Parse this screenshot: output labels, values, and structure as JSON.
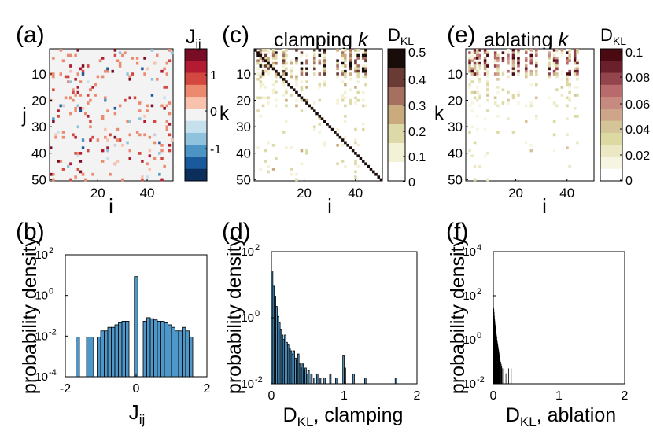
{
  "chart_data": [
    {
      "panel": "(a)",
      "type": "heatmap",
      "title": "",
      "xlabel": "i",
      "ylabel": "j",
      "xlim": [
        1,
        50
      ],
      "ylim": [
        1,
        50
      ],
      "x_ticks": [
        "20",
        "40"
      ],
      "y_ticks": [
        "10",
        "20",
        "30",
        "40",
        "50"
      ],
      "colorbar": {
        "label": "J",
        "label_sub": "ij",
        "range": [
          -1.5,
          1.5
        ],
        "ticks": [
          "1",
          "0",
          "-1"
        ],
        "colors": [
          "#7a0c25",
          "#b21b32",
          "#d2473f",
          "#ec8a70",
          "#f9c2ac",
          "#f3f3f3",
          "#c7e0ed",
          "#8fc2dd",
          "#4b94c4",
          "#1a5a9c",
          "#0b2e5c"
        ]
      },
      "background": "#f3f3f3",
      "cell_colors": [
        "#ec8a70",
        "#d2473f",
        "#b21b32",
        "#7a0c25",
        "#f9c2ac",
        "#8fc2dd",
        "#4b94c4",
        "#1a5a9c",
        "#c7e0ed",
        "#cfcfcf"
      ]
    },
    {
      "panel": "(b)",
      "type": "bar",
      "title": "",
      "xlabel": "J",
      "xlabel_sub": "ij",
      "ylabel": "probability density",
      "x_ticks": [
        "-2",
        "0",
        "2"
      ],
      "y_ticks": [
        "10",
        "10",
        "10",
        "10"
      ],
      "y_tick_exps": [
        "2",
        "0",
        "-2",
        "-4"
      ],
      "xlim": [
        -2,
        2
      ],
      "ylim_log10": [
        -4,
        2
      ],
      "bar_color": "#4e97c8",
      "bin_width": 0.1,
      "x": [
        -1.65,
        -1.35,
        -1.25,
        -1.05,
        -0.95,
        -0.85,
        -0.75,
        -0.65,
        -0.55,
        -0.45,
        -0.35,
        -0.25,
        0.0,
        0.25,
        0.35,
        0.45,
        0.55,
        0.65,
        0.75,
        0.85,
        0.95,
        1.05,
        1.15,
        1.25,
        1.35,
        1.45,
        1.55
      ],
      "values": [
        0.009,
        0.009,
        0.009,
        0.009,
        0.018,
        0.018,
        0.027,
        0.027,
        0.036,
        0.045,
        0.054,
        0.054,
        8.5,
        0.054,
        0.081,
        0.072,
        0.063,
        0.054,
        0.054,
        0.045,
        0.036,
        0.027,
        0.018,
        0.018,
        0.027,
        0.018,
        0.009
      ]
    },
    {
      "panel": "(c)",
      "type": "heatmap",
      "title": "clamping",
      "title_italic": "k",
      "xlabel": "i",
      "ylabel": "k",
      "xlim": [
        1,
        50
      ],
      "ylim": [
        1,
        50
      ],
      "x_ticks": [
        "20",
        "40"
      ],
      "y_ticks": [
        "10",
        "20",
        "30",
        "40",
        "50"
      ],
      "colorbar": {
        "label": "D",
        "label_sub": "KL",
        "range": [
          0,
          0.5
        ],
        "ticks": [
          "0.5",
          "0.4",
          "0.3",
          "0.2",
          "0.1",
          "0"
        ],
        "colors": [
          "#ffffff",
          "#f4f2d6",
          "#ddd9a9",
          "#c9ab7e",
          "#a57062",
          "#6a3b35",
          "#1a0d09"
        ]
      },
      "diagonal_color": "#1a0d09",
      "cell_colors": [
        "#f4f2d6",
        "#ddd9a9",
        "#c9ab7e",
        "#a57062",
        "#6a3b35",
        "#1a0d09",
        "#eee9c4"
      ]
    },
    {
      "panel": "(d)",
      "type": "bar",
      "title": "",
      "xlabel": "D",
      "xlabel_sub": "KL",
      "xlabel_suffix": ", clamping",
      "ylabel": "probability density",
      "x_ticks": [
        "0",
        "1",
        "2"
      ],
      "y_ticks": [
        "10",
        "10",
        "10"
      ],
      "y_tick_exps": [
        "2",
        "0",
        "-2"
      ],
      "xlim": [
        0,
        2
      ],
      "ylim_log10": [
        -2,
        2
      ],
      "bar_color": "#4e97c8",
      "bin_width": 0.02,
      "x": [
        0.01,
        0.03,
        0.05,
        0.07,
        0.09,
        0.11,
        0.13,
        0.15,
        0.17,
        0.19,
        0.21,
        0.23,
        0.25,
        0.27,
        0.29,
        0.31,
        0.33,
        0.35,
        0.37,
        0.39,
        0.41,
        0.43,
        0.45,
        0.47,
        0.49,
        0.51,
        0.55,
        0.59,
        0.63,
        0.67,
        0.73,
        0.81,
        0.89,
        0.99,
        1.01,
        1.13,
        1.29,
        1.71
      ],
      "values": [
        26,
        9,
        4.5,
        2.2,
        1.1,
        0.7,
        0.45,
        0.3,
        0.22,
        0.3,
        0.18,
        0.15,
        0.12,
        0.1,
        0.08,
        0.1,
        0.06,
        0.05,
        0.08,
        0.04,
        0.03,
        0.04,
        0.025,
        0.03,
        0.02,
        0.025,
        0.02,
        0.015,
        0.02,
        0.015,
        0.015,
        0.02,
        0.015,
        0.07,
        0.03,
        0.02,
        0.015,
        0.015
      ]
    },
    {
      "panel": "(e)",
      "type": "heatmap",
      "title": "ablating",
      "title_italic": "k",
      "xlabel": "i",
      "ylabel": "k",
      "xlim": [
        1,
        50
      ],
      "ylim": [
        1,
        50
      ],
      "x_ticks": [
        "20",
        "40"
      ],
      "y_ticks": [
        "10",
        "20",
        "30",
        "40",
        "50"
      ],
      "colorbar": {
        "label": "D",
        "label_sub": "KL",
        "range": [
          0,
          0.1
        ],
        "ticks": [
          "0.1",
          "0.08",
          "0.06",
          "0.04",
          "0.02",
          "0"
        ],
        "colors": [
          "#ffffff",
          "#f6f5e2",
          "#ebe8c3",
          "#dcd9a3",
          "#d4c498",
          "#cfa58a",
          "#c78a80",
          "#b86a6c",
          "#94444d",
          "#6b1f2a",
          "#4a0a12"
        ]
      },
      "cell_colors": [
        "#f6f5e2",
        "#ebe8c3",
        "#dcd9a3",
        "#d4c498",
        "#cfa58a",
        "#c78a80",
        "#b86a6c",
        "#94444d",
        "#6b1f2a",
        "#4a0a12"
      ]
    },
    {
      "panel": "(f)",
      "type": "bar",
      "title": "",
      "xlabel": "D",
      "xlabel_sub": "KL",
      "xlabel_suffix": ", ablation",
      "ylabel": "probability density",
      "x_ticks": [
        "0",
        "1",
        "2"
      ],
      "y_ticks": [
        "10",
        "10",
        "10",
        "10"
      ],
      "y_tick_exps": [
        "4",
        "2",
        "0",
        "-2"
      ],
      "xlim": [
        0,
        2
      ],
      "ylim_log10": [
        -2,
        4
      ],
      "bar_color": "#000000",
      "bin_width": 0.004,
      "x": [
        0.002,
        0.006,
        0.01,
        0.014,
        0.018,
        0.022,
        0.026,
        0.03,
        0.034,
        0.038,
        0.042,
        0.046,
        0.05,
        0.054,
        0.058,
        0.062,
        0.066,
        0.07,
        0.074,
        0.078,
        0.082,
        0.086,
        0.09,
        0.094,
        0.098,
        0.102,
        0.11,
        0.118,
        0.126,
        0.14,
        0.16,
        0.19,
        0.23,
        0.27
      ],
      "values": [
        30,
        25,
        18,
        12,
        9,
        7,
        5,
        4,
        3,
        2.5,
        2,
        1.6,
        1.3,
        1.0,
        0.9,
        0.7,
        0.6,
        0.5,
        0.4,
        0.35,
        0.3,
        0.25,
        0.2,
        0.18,
        0.15,
        0.12,
        0.1,
        0.08,
        0.06,
        0.05,
        0.04,
        0.03,
        0.05,
        0.05
      ]
    }
  ]
}
